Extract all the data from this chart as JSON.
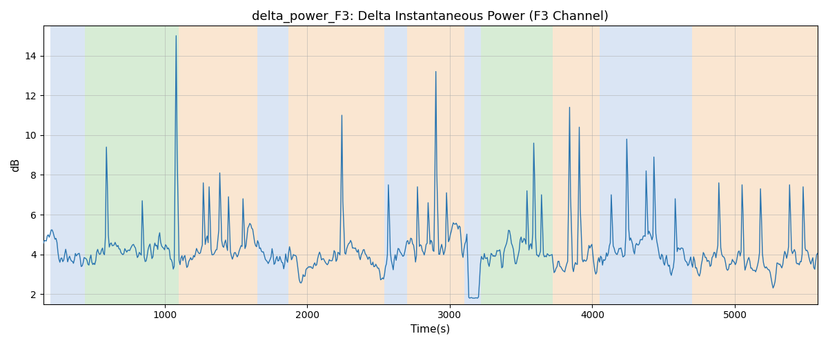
{
  "title": "delta_power_F3: Delta Instantaneous Power (F3 Channel)",
  "xlabel": "Time(s)",
  "ylabel": "dB",
  "ylim": [
    1.5,
    15.5
  ],
  "xlim": [
    150,
    5580
  ],
  "yticks": [
    2,
    4,
    6,
    8,
    10,
    12,
    14
  ],
  "xticks": [
    1000,
    2000,
    3000,
    4000,
    5000
  ],
  "figsize": [
    12.0,
    5.0
  ],
  "dpi": 100,
  "line_color": "#2874b0",
  "line_width": 1.0,
  "background_color": "#ffffff",
  "grid_color": "#aaaaaa",
  "bands": [
    {
      "start": 200,
      "end": 440,
      "color": "#aec6e8",
      "alpha": 0.45
    },
    {
      "start": 440,
      "end": 1100,
      "color": "#a8d5a2",
      "alpha": 0.45
    },
    {
      "start": 1100,
      "end": 1650,
      "color": "#f5c99a",
      "alpha": 0.45
    },
    {
      "start": 1650,
      "end": 1870,
      "color": "#aec6e8",
      "alpha": 0.45
    },
    {
      "start": 1870,
      "end": 2540,
      "color": "#f5c99a",
      "alpha": 0.45
    },
    {
      "start": 2540,
      "end": 2700,
      "color": "#aec6e8",
      "alpha": 0.45
    },
    {
      "start": 2700,
      "end": 3100,
      "color": "#f5c99a",
      "alpha": 0.45
    },
    {
      "start": 3100,
      "end": 3220,
      "color": "#aec6e8",
      "alpha": 0.45
    },
    {
      "start": 3220,
      "end": 3720,
      "color": "#a8d5a2",
      "alpha": 0.45
    },
    {
      "start": 3720,
      "end": 4050,
      "color": "#f5c99a",
      "alpha": 0.45
    },
    {
      "start": 4050,
      "end": 4700,
      "color": "#aec6e8",
      "alpha": 0.45
    },
    {
      "start": 4700,
      "end": 5580,
      "color": "#f5c99a",
      "alpha": 0.45
    }
  ],
  "seed": 42,
  "n_points": 800
}
